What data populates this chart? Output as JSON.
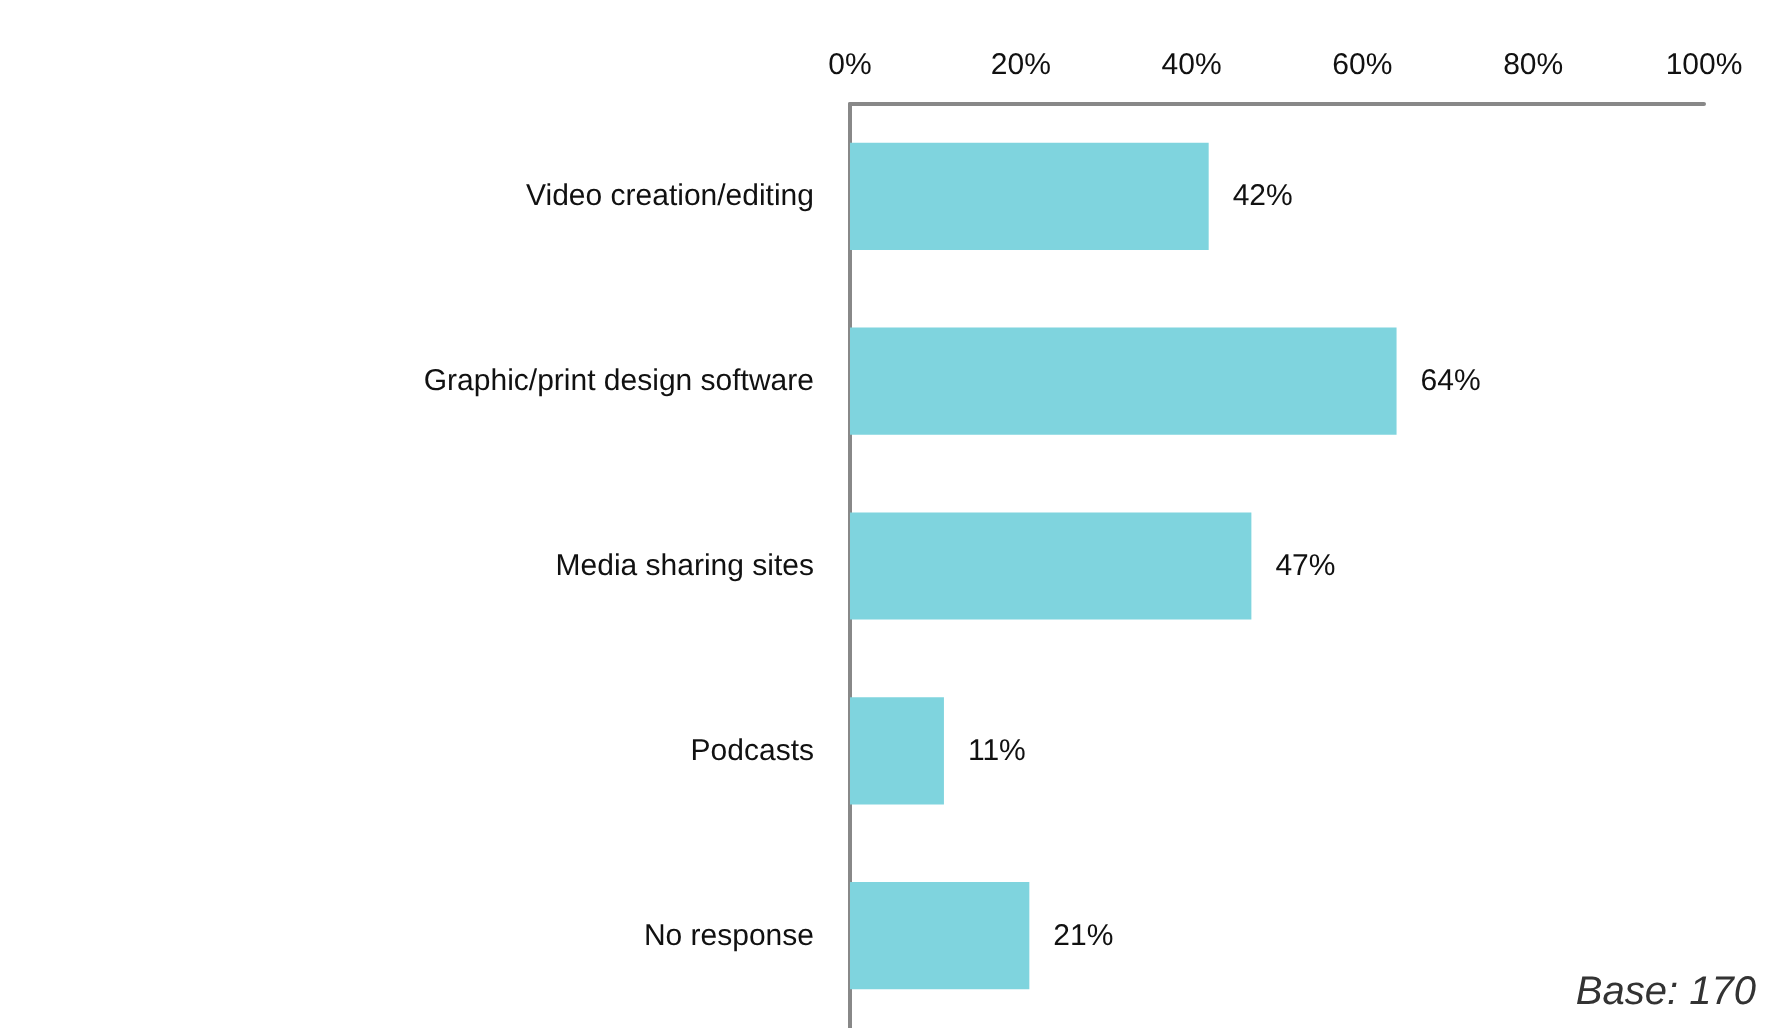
{
  "chart_data": {
    "type": "bar",
    "orientation": "horizontal",
    "categories": [
      "Video creation/editing",
      "Graphic/print design software",
      "Media sharing sites",
      "Podcasts",
      "No response"
    ],
    "values": [
      42,
      64,
      47,
      11,
      21
    ],
    "value_labels": [
      "42%",
      "64%",
      "47%",
      "11%",
      "21%"
    ],
    "color": "#7fd4de",
    "xlim": [
      0,
      100
    ],
    "xticks": [
      {
        "value": 0,
        "label": "0%"
      },
      {
        "value": 20,
        "label": "20%"
      },
      {
        "value": 40,
        "label": "40%"
      },
      {
        "value": 60,
        "label": "60%"
      },
      {
        "value": 80,
        "label": "80%"
      },
      {
        "value": 100,
        "label": "100%"
      }
    ],
    "annotations": [
      "Base: 170"
    ]
  }
}
